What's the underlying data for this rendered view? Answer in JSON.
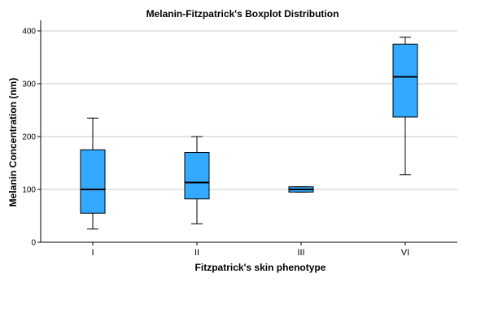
{
  "chart_data": {
    "type": "boxplot",
    "title": "Melanin-Fitzpatrick's Boxplot Distribution",
    "xlabel": "Fitzpatrick's skin phenotype",
    "ylabel": "Melanin Concentration (nm)",
    "ylim": [
      0,
      420
    ],
    "yticks": [
      0,
      100,
      200,
      300,
      400
    ],
    "grid": true,
    "categories": [
      "I",
      "II",
      "III",
      "VI"
    ],
    "boxes": [
      {
        "category": "I",
        "min": 25,
        "q1": 55,
        "median": 100,
        "q3": 175,
        "max": 235
      },
      {
        "category": "II",
        "min": 35,
        "q1": 82,
        "median": 113,
        "q3": 170,
        "max": 200
      },
      {
        "category": "III",
        "min": 95,
        "q1": 95,
        "median": 100,
        "q3": 105,
        "max": 105
      },
      {
        "category": "VI",
        "min": 128,
        "q1": 237,
        "median": 313,
        "q3": 375,
        "max": 388
      }
    ],
    "box_color": "#33aaff",
    "line_color": "#000000",
    "grid_color": "#c8c8c8"
  }
}
